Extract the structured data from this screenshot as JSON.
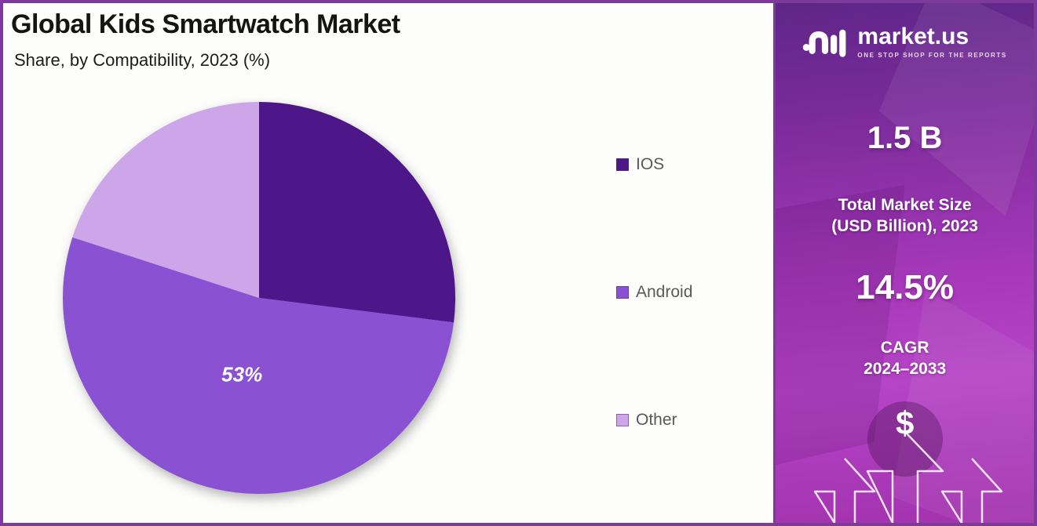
{
  "frame": {
    "border_color": "#7c3a9b"
  },
  "chart_panel": {
    "title": "Global Kids Smartwatch Market",
    "subtitle": "Share, by Compatibility, 2023 (%)"
  },
  "chart_data": {
    "type": "pie",
    "title": "Global Kids Smartwatch Market",
    "subtitle": "Share, by Compatibility, 2023 (%)",
    "categories": [
      "IOS",
      "Android",
      "Other"
    ],
    "values": [
      27,
      53,
      20
    ],
    "unit": "%",
    "colors": [
      "#4e1789",
      "#8a51d3",
      "#cda6ea"
    ],
    "data_labels": [
      "",
      "53%",
      ""
    ],
    "start_angle_deg": 0,
    "direction": "clockwise",
    "legend_position": "right",
    "legend_text_color": "#595959"
  },
  "sidebar": {
    "logo": {
      "brand": "market.us",
      "tagline": "ONE STOP SHOP FOR THE REPORTS"
    },
    "market_size": {
      "value": "1.5 B",
      "label_line1": "Total Market Size",
      "label_line2": "(USD Billion), 2023"
    },
    "cagr": {
      "value": "14.5%",
      "label_line1": "CAGR",
      "label_line2": "2024–2033"
    },
    "dollar_symbol": "$",
    "background_colors": {
      "top": "#5e2687",
      "mid": "#a538b8",
      "bottom": "#a232ae"
    }
  }
}
